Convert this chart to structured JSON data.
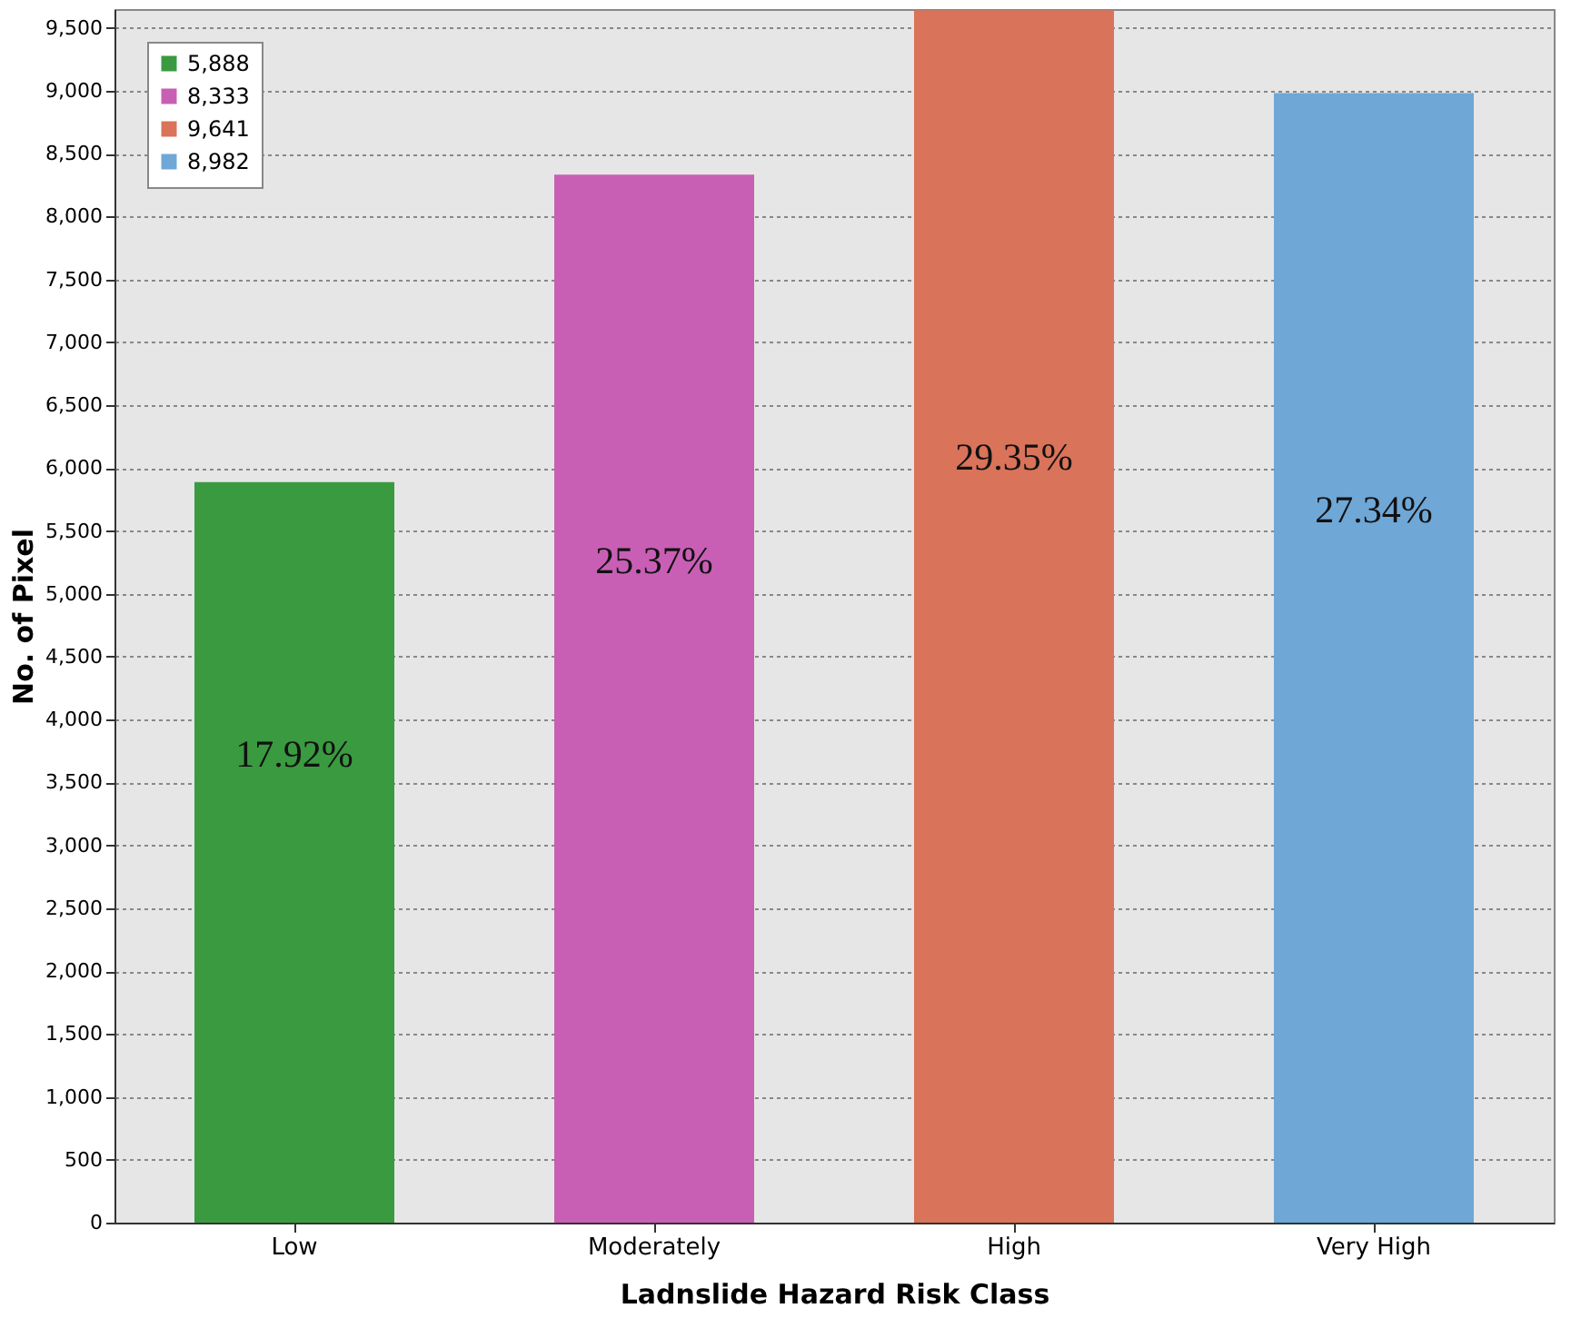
{
  "chart_data": {
    "type": "bar",
    "xlabel": "Ladnslide Hazard Risk Class",
    "ylabel": "No. of Pixel",
    "categories": [
      "Low",
      "Moderately",
      "High",
      "Very High"
    ],
    "series": [
      {
        "name": "5,888",
        "color": "#3a9a40",
        "values": [
          5888,
          null,
          null,
          null
        ]
      },
      {
        "name": "8,333",
        "color": "#c85fb5",
        "values": [
          null,
          8333,
          null,
          null
        ]
      },
      {
        "name": "9,641",
        "color": "#d9735a",
        "values": [
          null,
          null,
          9641,
          null
        ]
      },
      {
        "name": "8,982",
        "color": "#6fa7d6",
        "values": [
          null,
          null,
          null,
          8982
        ]
      }
    ],
    "annotations": [
      "17.92%",
      "25.37%",
      "29.35%",
      "27.34%"
    ],
    "ylim": [
      0,
      9650
    ],
    "yticks": [
      0,
      500,
      {
        "value": 1000,
        "label": "1,000"
      },
      {
        "value": 1500,
        "label": "1,500"
      },
      {
        "value": 2000,
        "label": "2,000"
      },
      {
        "value": 2500,
        "label": "2,500"
      },
      {
        "value": 3000,
        "label": "3,000"
      },
      {
        "value": 3500,
        "label": "3,500"
      },
      {
        "value": 4000,
        "label": "4,000"
      },
      {
        "value": 4500,
        "label": "4,500"
      },
      {
        "value": 5000,
        "label": "5,000"
      },
      {
        "value": 5500,
        "label": "5,500"
      },
      {
        "value": 6000,
        "label": "6,000"
      },
      {
        "value": 6500,
        "label": "6,500"
      },
      {
        "value": 7000,
        "label": "7,000"
      },
      {
        "value": 7500,
        "label": "7,500"
      },
      {
        "value": 8000,
        "label": "8,000"
      },
      {
        "value": 8500,
        "label": "8,500"
      },
      {
        "value": 9000,
        "label": "9,000"
      },
      {
        "value": 9500,
        "label": "9,500"
      }
    ],
    "grid": "y",
    "legend": "top left"
  }
}
